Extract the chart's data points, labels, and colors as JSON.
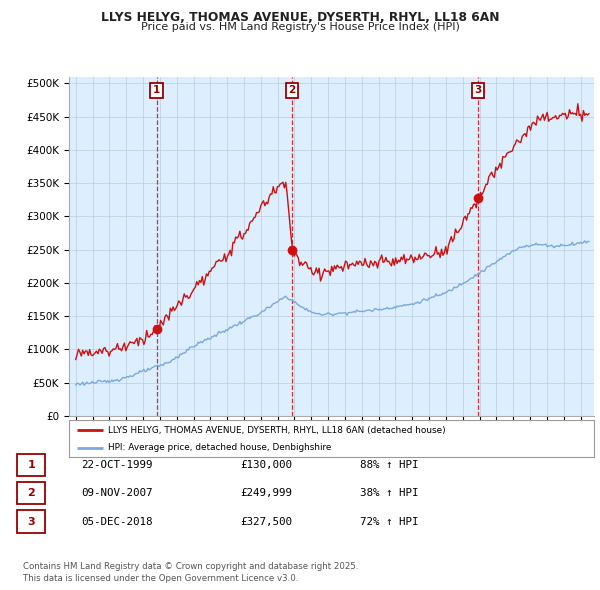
{
  "title_line1": "LLYS HELYG, THOMAS AVENUE, DYSERTH, RHYL, LL18 6AN",
  "title_line2": "Price paid vs. HM Land Registry's House Price Index (HPI)",
  "ylim": [
    0,
    510000
  ],
  "yticks": [
    0,
    50000,
    100000,
    150000,
    200000,
    250000,
    300000,
    350000,
    400000,
    450000,
    500000
  ],
  "ytick_labels": [
    "£0",
    "£50K",
    "£100K",
    "£150K",
    "£200K",
    "£250K",
    "£300K",
    "£350K",
    "£400K",
    "£450K",
    "£500K"
  ],
  "hpi_color": "#7aaadd",
  "price_color": "#cc1111",
  "sale_dates_decimal": [
    1999.81,
    2007.86,
    2018.92
  ],
  "sale_prices": [
    130000,
    249999,
    327500
  ],
  "sale_labels": [
    "1",
    "2",
    "3"
  ],
  "vline_color": "#cc1111",
  "legend_property_label": "LLYS HELYG, THOMAS AVENUE, DYSERTH, RHYL, LL18 6AN (detached house)",
  "legend_hpi_label": "HPI: Average price, detached house, Denbighshire",
  "table_data": [
    [
      "1",
      "22-OCT-1999",
      "£130,000",
      "88% ↑ HPI"
    ],
    [
      "2",
      "09-NOV-2007",
      "£249,999",
      "38% ↑ HPI"
    ],
    [
      "3",
      "05-DEC-2018",
      "£327,500",
      "72% ↑ HPI"
    ]
  ],
  "footnote": "Contains HM Land Registry data © Crown copyright and database right 2025.\nThis data is licensed under the Open Government Licence v3.0.",
  "background_color": "#ffffff",
  "plot_bg_color": "#ddeeff",
  "grid_color": "#bbccdd",
  "xlim_start": 1994.6,
  "xlim_end": 2025.8
}
